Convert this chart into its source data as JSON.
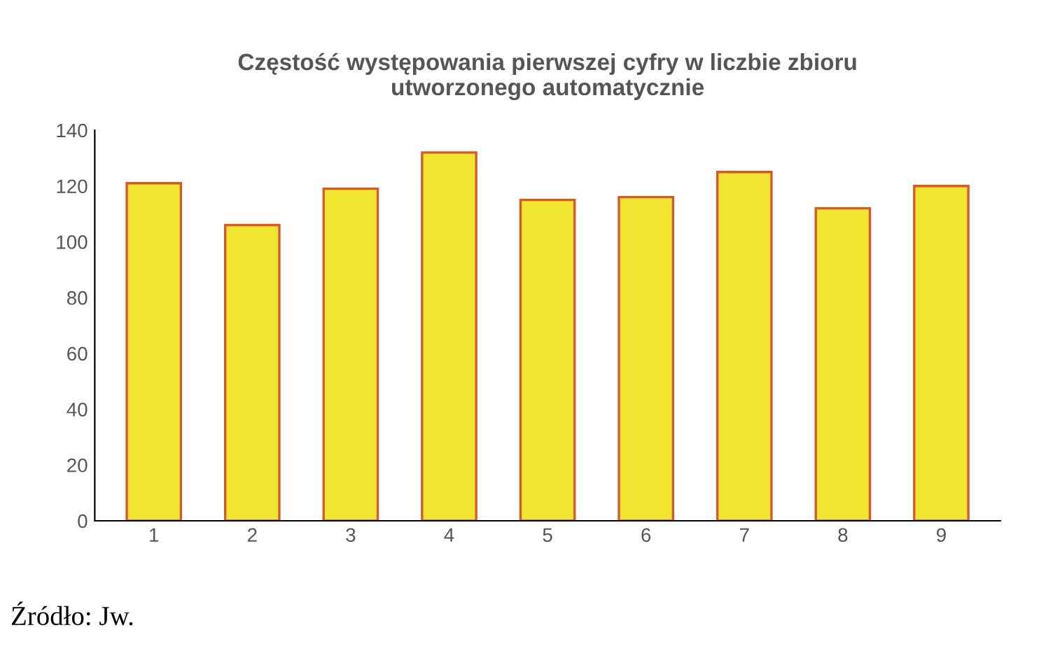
{
  "chart_data": {
    "type": "bar",
    "title": "Częstość występowania pierwszej cyfry w liczbie zbioru\nutworzonego automatycznie",
    "categories": [
      "1",
      "2",
      "3",
      "4",
      "5",
      "6",
      "7",
      "8",
      "9"
    ],
    "values": [
      121,
      106,
      119,
      132,
      115,
      116,
      125,
      112,
      120
    ],
    "color": "#f0e630",
    "ylim": [
      0,
      140
    ],
    "yticks": [
      0,
      20,
      40,
      60,
      80,
      100,
      120,
      140
    ],
    "annotations": [
      "Źródło: Jw."
    ]
  }
}
